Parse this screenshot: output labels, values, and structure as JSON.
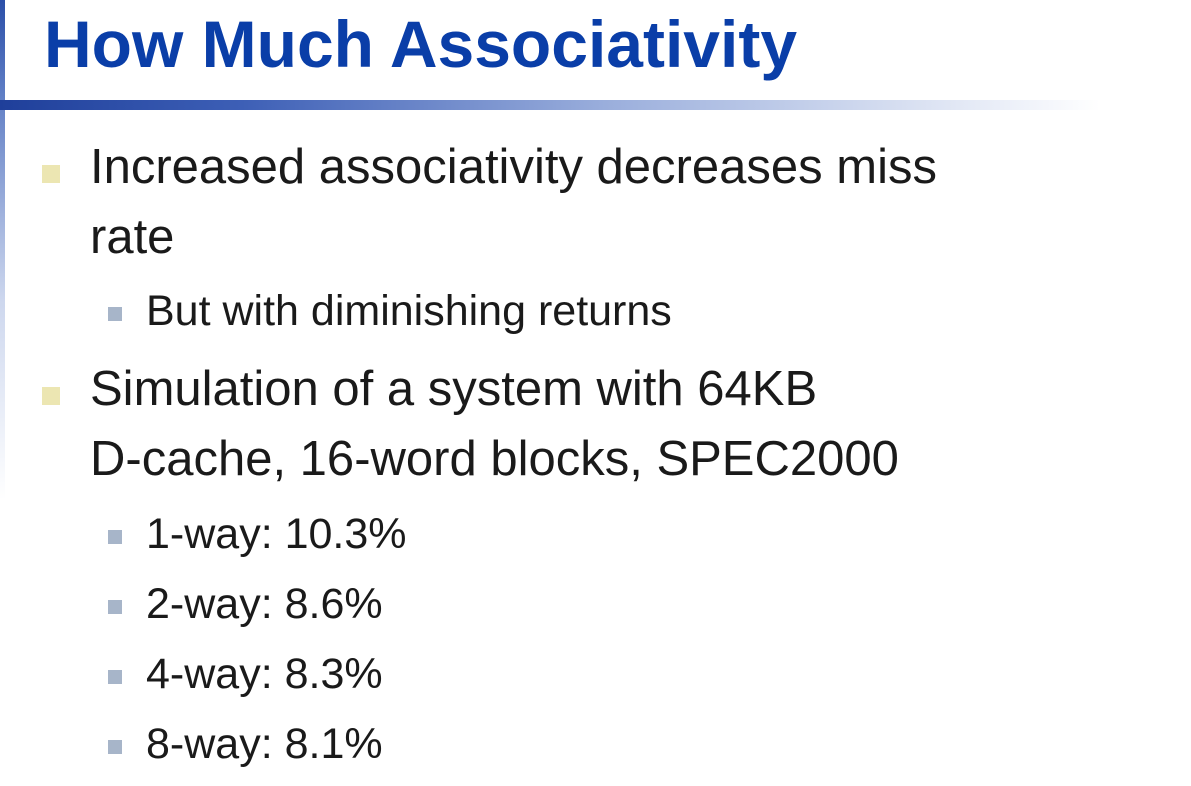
{
  "slide": {
    "title": "How Much Associativity",
    "bullets": [
      {
        "lines": [
          "Increased associativity decreases miss",
          "rate"
        ],
        "sub": [
          "But with diminishing returns"
        ]
      },
      {
        "lines": [
          "Simulation of a system with 64KB",
          "D-cache, 16-word blocks, SPEC2000"
        ],
        "sub": [
          "1-way: 10.3%",
          "2-way: 8.6%",
          "4-way: 8.3%",
          "8-way: 8.1%"
        ]
      }
    ]
  },
  "colors": {
    "title": "#0a3ea8",
    "accent_rule": "#1f3f9a",
    "bullet_level1": "#ece6b2",
    "bullet_level2": "#a7b5c9",
    "body_text": "#1a1a1a"
  }
}
